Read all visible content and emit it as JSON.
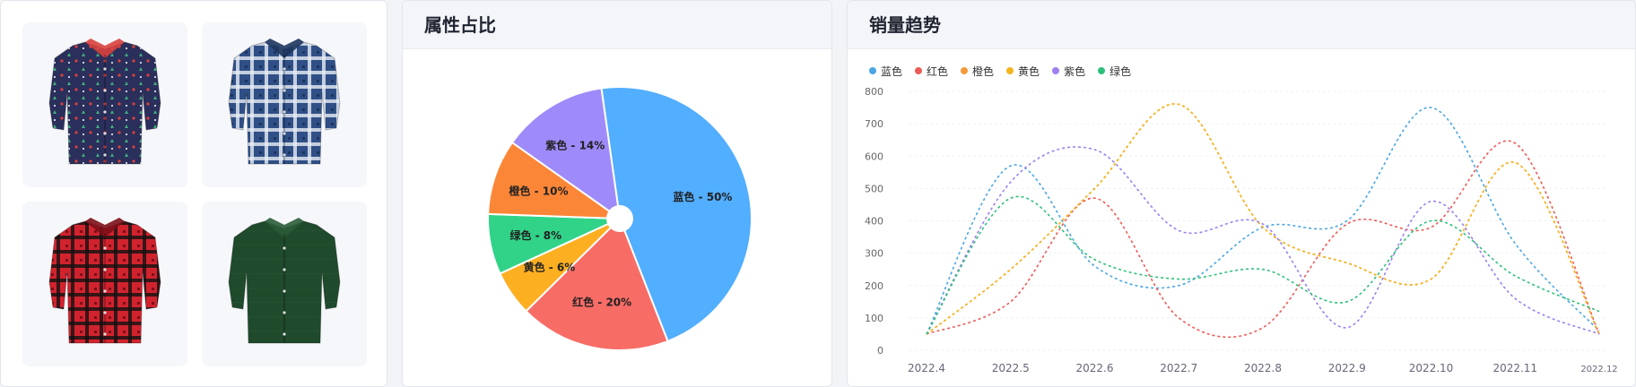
{
  "gallery": {
    "items": [
      {
        "icon": "christmas-print-shirt-icon",
        "base": "#2b2f5c",
        "accent": "#3fae7c",
        "accent2": "#d9413d"
      },
      {
        "icon": "blue-plaid-shirt-icon",
        "base": "#2f4f86",
        "accent": "#e9eef5",
        "accent2": "#1d355e"
      },
      {
        "icon": "red-plaid-shirt-icon",
        "base": "#d1232e",
        "accent": "#111111",
        "accent2": "#7d0f18"
      },
      {
        "icon": "green-dress-shirt-icon",
        "base": "#1f4a2c",
        "accent": "#163a22",
        "accent2": "#2a5c38"
      }
    ]
  },
  "pie": {
    "title": "属性占比",
    "chart_data": {
      "type": "pie",
      "slices": [
        {
          "name": "蓝色",
          "label": "蓝色 - 50%",
          "value": 50,
          "color": "#52aefe"
        },
        {
          "name": "红色",
          "label": "红色 - 20%",
          "value": 20,
          "color": "#f86c66"
        },
        {
          "name": "黄色",
          "label": "黄色 - 6%",
          "value": 6,
          "color": "#fdaf22"
        },
        {
          "name": "绿色",
          "label": "绿色 - 8%",
          "value": 8,
          "color": "#31d388"
        },
        {
          "name": "橙色",
          "label": "橙色 - 10%",
          "value": 10,
          "color": "#fc8637"
        },
        {
          "name": "紫色",
          "label": "紫色 - 14%",
          "value": 14,
          "color": "#9f8afa"
        }
      ]
    }
  },
  "trend": {
    "title": "销量趋势",
    "chart_data": {
      "type": "line",
      "categories": [
        "2022.4",
        "2022.5",
        "2022.6",
        "2022.7",
        "2022.8",
        "2022.9",
        "2022.10",
        "2022.11",
        "2022.12"
      ],
      "ylim": [
        0,
        800
      ],
      "yticks": [
        "0",
        "100",
        "200",
        "300",
        "400",
        "500",
        "600",
        "700",
        "800"
      ],
      "series": [
        {
          "name": "蓝色",
          "color": "#4aa6e3",
          "values": [
            50,
            570,
            260,
            200,
            380,
            400,
            750,
            330,
            60
          ]
        },
        {
          "name": "红色",
          "color": "#ec5b57",
          "values": [
            50,
            150,
            470,
            100,
            70,
            390,
            380,
            640,
            50
          ]
        },
        {
          "name": "橙色",
          "color": "#f59a3a",
          "values": [
            50,
            250,
            500,
            760,
            380,
            270,
            220,
            580,
            50
          ]
        },
        {
          "name": "黄色",
          "color": "#f3b41e",
          "values": [
            50,
            250,
            500,
            760,
            380,
            270,
            220,
            580,
            50
          ]
        },
        {
          "name": "紫色",
          "color": "#9d80f0",
          "values": [
            50,
            520,
            620,
            370,
            390,
            70,
            460,
            160,
            50
          ]
        },
        {
          "name": "绿色",
          "color": "#2ec17a",
          "values": [
            50,
            470,
            280,
            220,
            250,
            150,
            400,
            230,
            120
          ]
        }
      ]
    }
  }
}
